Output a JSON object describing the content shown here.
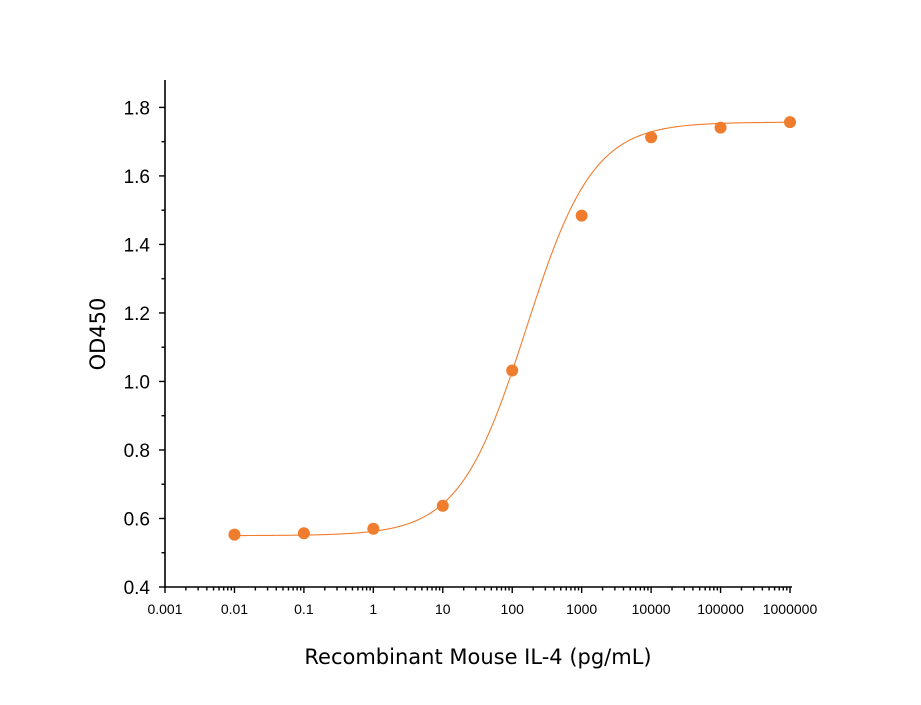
{
  "chart_data": {
    "type": "scatter",
    "title": "",
    "xlabel": "Recombinant Mouse IL-4 (pg/mL)",
    "ylabel": "OD450",
    "xscale": "log",
    "xlim": [
      0.001,
      1000000
    ],
    "ylim": [
      0.4,
      1.88
    ],
    "x_ticks": [
      "0.001",
      "0.01",
      "0.1",
      "1",
      "10",
      "100",
      "1000",
      "10000",
      "100000",
      "1000000"
    ],
    "y_ticks": [
      "0.4",
      "0.6",
      "0.8",
      "1.0",
      "1.2",
      "1.4",
      "1.6",
      "1.8"
    ],
    "grid": false,
    "legend": "none",
    "color": "#f07c2e",
    "series": [
      {
        "name": "Recombinant Mouse IL-4",
        "x": [
          0.01,
          0.1,
          1,
          10,
          100,
          1000,
          10000,
          100000,
          1000000
        ],
        "y": [
          0.553,
          0.557,
          0.57,
          0.637,
          1.032,
          1.484,
          1.713,
          1.741,
          1.757
        ]
      }
    ],
    "fit": {
      "model": "4PL",
      "bottom": 0.55,
      "top": 1.757,
      "log_ec50": 2.2,
      "hill": 0.9
    }
  }
}
